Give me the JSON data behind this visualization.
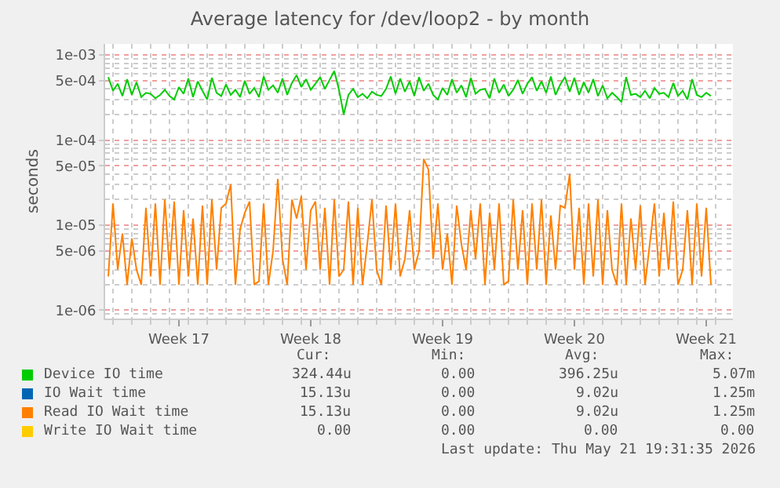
{
  "chart_data": {
    "type": "line",
    "title": "Average latency for /dev/loop2 - by month",
    "ylabel": "seconds",
    "x": [
      "2026-04-19T18:00",
      "2026-04-20T00:00",
      "2026-04-20T06:00",
      "2026-04-20T12:00",
      "2026-04-20T18:00",
      "2026-04-21T00:00",
      "2026-04-21T06:00",
      "2026-04-21T12:00",
      "2026-04-21T18:00",
      "2026-04-22T00:00",
      "2026-04-22T06:00",
      "2026-04-22T12:00",
      "2026-04-22T18:00",
      "2026-04-23T00:00",
      "2026-04-23T06:00",
      "2026-04-23T12:00",
      "2026-04-23T18:00",
      "2026-04-24T00:00",
      "2026-04-24T06:00",
      "2026-04-24T12:00",
      "2026-04-24T18:00",
      "2026-04-25T00:00",
      "2026-04-25T06:00",
      "2026-04-25T12:00",
      "2026-04-25T18:00",
      "2026-04-26T00:00",
      "2026-04-26T06:00",
      "2026-04-26T12:00",
      "2026-04-26T18:00",
      "2026-04-27T00:00",
      "2026-04-27T06:00",
      "2026-04-27T12:00",
      "2026-04-27T18:00",
      "2026-04-28T00:00",
      "2026-04-28T06:00",
      "2026-04-28T12:00",
      "2026-04-28T18:00",
      "2026-04-29T00:00",
      "2026-04-29T06:00",
      "2026-04-29T12:00",
      "2026-04-29T18:00",
      "2026-04-30T00:00",
      "2026-04-30T06:00",
      "2026-04-30T12:00",
      "2026-04-30T18:00",
      "2026-05-01T00:00",
      "2026-05-01T06:00",
      "2026-05-01T12:00",
      "2026-05-01T18:00",
      "2026-05-02T00:00",
      "2026-05-02T06:00",
      "2026-05-02T12:00",
      "2026-05-02T18:00",
      "2026-05-03T00:00",
      "2026-05-03T06:00",
      "2026-05-03T12:00",
      "2026-05-03T18:00",
      "2026-05-04T00:00",
      "2026-05-04T06:00",
      "2026-05-04T12:00",
      "2026-05-04T18:00",
      "2026-05-05T00:00",
      "2026-05-05T06:00",
      "2026-05-05T12:00",
      "2026-05-05T18:00",
      "2026-05-06T00:00",
      "2026-05-06T06:00",
      "2026-05-06T12:00",
      "2026-05-06T18:00",
      "2026-05-07T00:00",
      "2026-05-07T06:00",
      "2026-05-07T12:00",
      "2026-05-07T18:00",
      "2026-05-08T00:00",
      "2026-05-08T06:00",
      "2026-05-08T12:00",
      "2026-05-08T18:00",
      "2026-05-09T00:00",
      "2026-05-09T06:00",
      "2026-05-09T12:00",
      "2026-05-09T18:00",
      "2026-05-10T00:00",
      "2026-05-10T06:00",
      "2026-05-10T12:00",
      "2026-05-10T18:00",
      "2026-05-11T00:00",
      "2026-05-11T06:00",
      "2026-05-11T12:00",
      "2026-05-11T18:00",
      "2026-05-12T00:00",
      "2026-05-12T06:00",
      "2026-05-12T12:00",
      "2026-05-12T18:00",
      "2026-05-13T00:00",
      "2026-05-13T06:00",
      "2026-05-13T12:00",
      "2026-05-13T18:00",
      "2026-05-14T00:00",
      "2026-05-14T06:00",
      "2026-05-14T12:00",
      "2026-05-14T18:00",
      "2026-05-15T00:00",
      "2026-05-15T06:00",
      "2026-05-15T12:00",
      "2026-05-15T18:00",
      "2026-05-16T00:00",
      "2026-05-16T06:00",
      "2026-05-16T12:00",
      "2026-05-16T18:00",
      "2026-05-17T00:00",
      "2026-05-17T06:00",
      "2026-05-17T12:00",
      "2026-05-17T18:00",
      "2026-05-18T00:00",
      "2026-05-18T06:00",
      "2026-05-18T12:00",
      "2026-05-18T18:00",
      "2026-05-19T00:00",
      "2026-05-19T06:00",
      "2026-05-19T12:00",
      "2026-05-19T18:00",
      "2026-05-20T00:00",
      "2026-05-20T06:00",
      "2026-05-20T12:00",
      "2026-05-20T18:00",
      "2026-05-21T00:00",
      "2026-05-21T06:00",
      "2026-05-21T12:00",
      "2026-05-21T18:00"
    ],
    "series": [
      {
        "name": "Device IO time",
        "color": "#00cc00",
        "values": [
          0.00055,
          0.00038,
          0.00046,
          0.00033,
          0.00052,
          0.00034,
          0.00048,
          0.00032,
          0.00036,
          0.00035,
          0.00031,
          0.00034,
          0.00039,
          0.00033,
          0.0003,
          0.00042,
          0.00035,
          0.00053,
          0.00032,
          0.00049,
          0.00038,
          0.0003,
          0.00054,
          0.00036,
          0.00033,
          0.00045,
          0.00034,
          0.00039,
          0.00032,
          0.0005,
          0.00035,
          0.00041,
          0.00032,
          0.00056,
          0.00039,
          0.00044,
          0.00036,
          0.00053,
          0.00034,
          0.00047,
          0.00058,
          0.00042,
          0.00052,
          0.00039,
          0.00046,
          0.00055,
          0.0004,
          0.00051,
          0.00065,
          0.00039,
          0.0002,
          0.00034,
          0.0004,
          0.00032,
          0.00035,
          0.00031,
          0.00037,
          0.00034,
          0.00033,
          0.0004,
          0.00056,
          0.00035,
          0.00053,
          0.00037,
          0.00049,
          0.00033,
          0.00055,
          0.00038,
          0.00046,
          0.00034,
          0.0003,
          0.00041,
          0.00034,
          0.00052,
          0.00036,
          0.00044,
          0.00032,
          0.00054,
          0.00035,
          0.00039,
          0.0004,
          0.00031,
          0.00053,
          0.00036,
          0.00045,
          0.00033,
          0.00039,
          0.00051,
          0.00035,
          0.00046,
          0.00055,
          0.00038,
          0.00049,
          0.00036,
          0.00056,
          0.00034,
          0.00045,
          0.00055,
          0.00037,
          0.00054,
          0.00034,
          0.00048,
          0.00036,
          0.00052,
          0.00033,
          0.00044,
          0.00031,
          0.00036,
          0.00032,
          0.00028,
          0.00055,
          0.00034,
          0.00035,
          0.00032,
          0.00038,
          0.00031,
          0.00041,
          0.00035,
          0.00036,
          0.00032,
          0.00047,
          0.00033,
          0.00038,
          0.0003,
          0.00052,
          0.00034,
          0.00032,
          0.00036,
          0.00033
        ]
      },
      {
        "name": "IO Wait time",
        "color": "#0066b3",
        "values": [
          null,
          null,
          null,
          null,
          null,
          null,
          null,
          null,
          null,
          null,
          null,
          null,
          null,
          null,
          null,
          null,
          null,
          null,
          null,
          null,
          null,
          null,
          null,
          null,
          null,
          null,
          null,
          null,
          null,
          null,
          null,
          null,
          null,
          null,
          null,
          null,
          null,
          null,
          null,
          null,
          null,
          null,
          null,
          null,
          null,
          null,
          null,
          null,
          null,
          null,
          null,
          null,
          null,
          null,
          null,
          null,
          null,
          null,
          null,
          null,
          null,
          null,
          null,
          null,
          null,
          null,
          null,
          null,
          null,
          null,
          null,
          null,
          null,
          null,
          null,
          null,
          null,
          null,
          null,
          null,
          null,
          null,
          null,
          null,
          null,
          null,
          null,
          null,
          null,
          null,
          null,
          null,
          null,
          null,
          null,
          null,
          null,
          null,
          null,
          null,
          null,
          null,
          null,
          null,
          null,
          null,
          null,
          null,
          null,
          null,
          null,
          null,
          null,
          null,
          null,
          null,
          null,
          null,
          null,
          null,
          null,
          null,
          null,
          null,
          null,
          null,
          null,
          null,
          null
        ]
      },
      {
        "name": "Read IO Wait time",
        "color": "#ff8000",
        "values": [
          2.5e-06,
          1.8e-05,
          3e-06,
          8e-06,
          2e-06,
          7e-06,
          3e-06,
          2e-06,
          1.6e-05,
          2.5e-06,
          1.8e-05,
          2e-06,
          2e-05,
          3e-06,
          1.9e-05,
          2e-06,
          1.5e-05,
          2.5e-06,
          1.2e-05,
          2e-06,
          1.7e-05,
          2e-06,
          2e-05,
          3e-06,
          1.6e-05,
          1.8e-05,
          3e-05,
          2e-06,
          9e-06,
          1.4e-05,
          1.9e-05,
          2e-06,
          2.2e-06,
          1.8e-05,
          2e-06,
          5e-06,
          3.5e-05,
          4e-06,
          2e-06,
          2e-05,
          1.2e-05,
          2.2e-05,
          3e-06,
          1.5e-05,
          1.9e-05,
          3e-06,
          1.6e-05,
          2e-06,
          2e-05,
          2.5e-06,
          3e-06,
          1.9e-05,
          2e-06,
          1.6e-05,
          2e-06,
          6e-06,
          2e-05,
          3e-06,
          2e-06,
          1.7e-05,
          3e-06,
          1.8e-05,
          2.5e-06,
          4e-06,
          1.5e-05,
          3e-06,
          5e-06,
          6e-05,
          4.5e-05,
          4e-06,
          1.8e-05,
          3e-06,
          8e-06,
          2e-06,
          1.7e-05,
          6e-06,
          3e-06,
          1.5e-05,
          4e-06,
          1.8e-05,
          2e-06,
          1.4e-05,
          3e-06,
          1.8e-05,
          2e-06,
          2.2e-06,
          2e-05,
          3e-06,
          1.5e-05,
          2e-06,
          1.8e-05,
          3e-06,
          2e-05,
          2e-06,
          1.3e-05,
          3e-06,
          1.7e-05,
          1.6e-05,
          4e-05,
          3e-06,
          1.6e-05,
          2e-06,
          1.8e-05,
          2.5e-06,
          2e-05,
          2e-06,
          1.5e-05,
          3e-06,
          2e-06,
          1.8e-05,
          2e-06,
          1.2e-05,
          3e-06,
          1.7e-05,
          2e-06,
          6e-06,
          1.8e-05,
          2.5e-06,
          1.4e-05,
          3e-06,
          1.9e-05,
          2e-06,
          3e-06,
          1.5e-05,
          2e-06,
          1.8e-05,
          2.5e-06,
          1.6e-05,
          2e-06
        ]
      },
      {
        "name": "Write IO Wait time",
        "color": "#ffcc00",
        "values": [
          null,
          null,
          null,
          null,
          null,
          null,
          null,
          null,
          null,
          null,
          null,
          null,
          null,
          null,
          null,
          null,
          null,
          null,
          null,
          null,
          null,
          null,
          null,
          null,
          null,
          null,
          null,
          null,
          null,
          null,
          null,
          null,
          null,
          null,
          null,
          null,
          null,
          null,
          null,
          null,
          null,
          null,
          null,
          null,
          null,
          null,
          null,
          null,
          null,
          null,
          null,
          null,
          null,
          null,
          null,
          null,
          null,
          null,
          null,
          null,
          null,
          null,
          null,
          null,
          null,
          null,
          null,
          null,
          null,
          null,
          null,
          null,
          null,
          null,
          null,
          null,
          null,
          null,
          null,
          null,
          null,
          null,
          null,
          null,
          null,
          null,
          null,
          null,
          null,
          null,
          null,
          null,
          null,
          null,
          null,
          null,
          null,
          null,
          null,
          null,
          null,
          null,
          null,
          null,
          null,
          null,
          null,
          null,
          null,
          null,
          null,
          null,
          null,
          null,
          null,
          null,
          null,
          null,
          null,
          null,
          null,
          null,
          null,
          null,
          null,
          null,
          null,
          null,
          null
        ]
      }
    ],
    "xlim": [
      "2026-04-19T14:00",
      "2026-05-22T22:00"
    ],
    "xticks": [
      {
        "value": "2026-04-23T12:00",
        "label": "Week 17"
      },
      {
        "value": "2026-04-30T12:00",
        "label": "Week 18"
      },
      {
        "value": "2026-05-07T12:00",
        "label": "Week 19"
      },
      {
        "value": "2026-05-14T12:00",
        "label": "Week 20"
      },
      {
        "value": "2026-05-21T12:00",
        "label": "Week 21"
      }
    ],
    "ylim": [
      8e-07,
      0.00135
    ],
    "log": true,
    "yticks": [
      {
        "value": 0.001,
        "label": "1e-03"
      },
      {
        "value": 0.0005,
        "label": "5e-04"
      },
      {
        "value": 0.0001,
        "label": "1e-04"
      },
      {
        "value": 5e-05,
        "label": "5e-05"
      },
      {
        "value": 1e-05,
        "label": "1e-05"
      },
      {
        "value": 5e-06,
        "label": "5e-06"
      },
      {
        "value": 1e-06,
        "label": "1e-06"
      }
    ],
    "grid": true,
    "legend": "bottom",
    "annotations": [
      "Cur:",
      "Min:",
      "Avg:",
      "Max:",
      "324.44u",
      "0.00",
      "396.25u",
      "5.07m",
      "15.13u",
      "0.00",
      "9.02u",
      "1.25m",
      "15.13u",
      "0.00",
      "9.02u",
      "1.25m",
      "0.00",
      "0.00",
      "0.00",
      "0.00",
      "Last update: Thu May 21 19:31:35 2026"
    ]
  }
}
